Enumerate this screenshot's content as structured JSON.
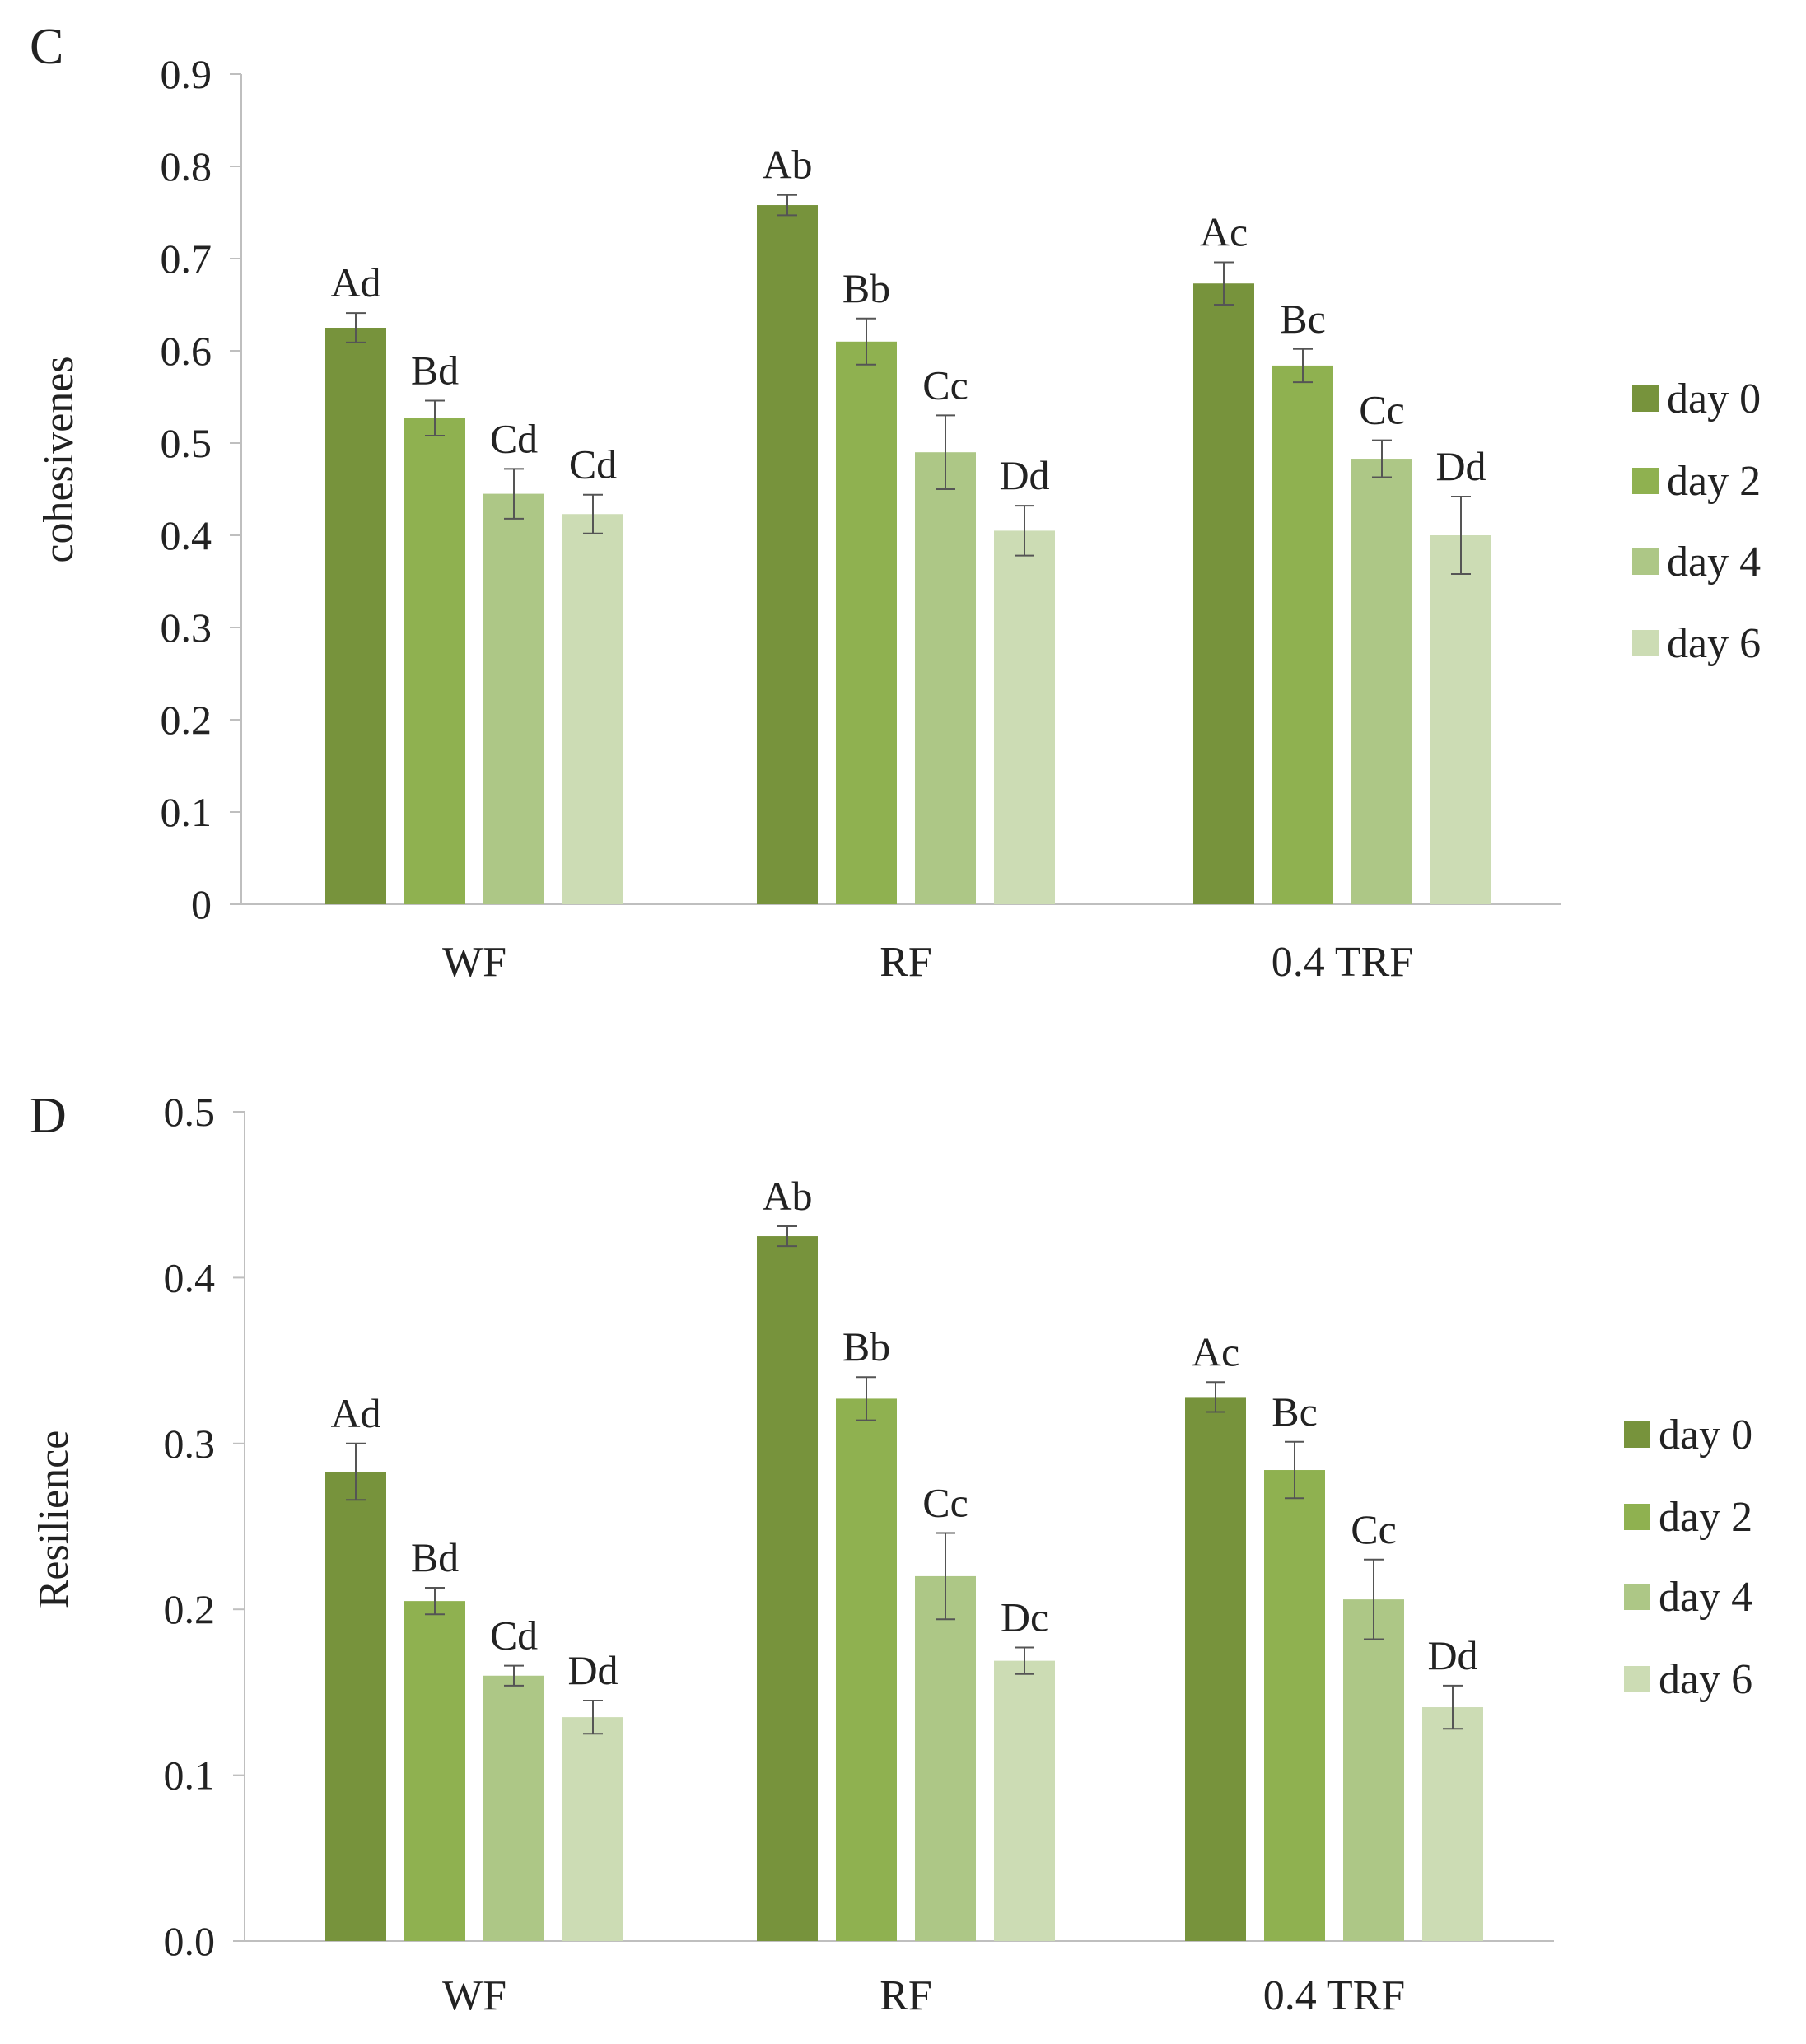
{
  "chart_data": [
    {
      "panel": "C",
      "type": "bar",
      "title": "",
      "xlabel": "",
      "ylabel": "cohesivenes",
      "ylim": [
        0,
        0.9
      ],
      "yticks": [
        "0",
        "0.1",
        "0.2",
        "0.3",
        "0.4",
        "0.5",
        "0.6",
        "0.7",
        "0.8",
        "0.9"
      ],
      "grid": false,
      "legend_position": "right",
      "categories": [
        "WF",
        "RF",
        "0.4 TRF"
      ],
      "series": [
        {
          "name": "day 0",
          "color": "#77933c",
          "values": [
            0.625,
            0.758,
            0.673
          ],
          "errors": [
            0.016,
            0.011,
            0.023
          ],
          "labels": [
            "Ad",
            "Ab",
            "Ac"
          ]
        },
        {
          "name": "day 2",
          "color": "#8fb150",
          "values": [
            0.527,
            0.61,
            0.584
          ],
          "errors": [
            0.019,
            0.025,
            0.018
          ],
          "labels": [
            "Bd",
            "Bb",
            "Bc"
          ]
        },
        {
          "name": "day 4",
          "color": "#adc786",
          "values": [
            0.445,
            0.49,
            0.483
          ],
          "errors": [
            0.027,
            0.04,
            0.02
          ],
          "labels": [
            "Cd",
            "Cc",
            "Cc"
          ]
        },
        {
          "name": "day 6",
          "color": "#ccdcb4",
          "values": [
            0.423,
            0.405,
            0.4
          ],
          "errors": [
            0.021,
            0.027,
            0.042
          ],
          "labels": [
            "Cd",
            "Dd",
            "Dd"
          ]
        }
      ]
    },
    {
      "panel": "D",
      "type": "bar",
      "title": "",
      "xlabel": "",
      "ylabel": "Resilience",
      "ylim": [
        0,
        0.5
      ],
      "yticks": [
        "0.0",
        "0.1",
        "0.2",
        "0.3",
        "0.4",
        "0.5"
      ],
      "grid": false,
      "legend_position": "right",
      "categories": [
        "WF",
        "RF",
        "0.4 TRF"
      ],
      "series": [
        {
          "name": "day 0",
          "color": "#77933c",
          "values": [
            0.283,
            0.425,
            0.328
          ],
          "errors": [
            0.017,
            0.006,
            0.009
          ],
          "labels": [
            "Ad",
            "Ab",
            "Ac"
          ]
        },
        {
          "name": "day 2",
          "color": "#8fb150",
          "values": [
            0.205,
            0.327,
            0.284
          ],
          "errors": [
            0.008,
            0.013,
            0.017
          ],
          "labels": [
            "Bd",
            "Bb",
            "Bc"
          ]
        },
        {
          "name": "day 4",
          "color": "#adc786",
          "values": [
            0.16,
            0.22,
            0.206
          ],
          "errors": [
            0.006,
            0.026,
            0.024
          ],
          "labels": [
            "Cd",
            "Cc",
            "Cc"
          ]
        },
        {
          "name": "day 6",
          "color": "#ccdcb4",
          "values": [
            0.135,
            0.169,
            0.141
          ],
          "errors": [
            0.01,
            0.008,
            0.013
          ],
          "labels": [
            "Dd",
            "Dc",
            "Dd"
          ]
        }
      ]
    }
  ]
}
